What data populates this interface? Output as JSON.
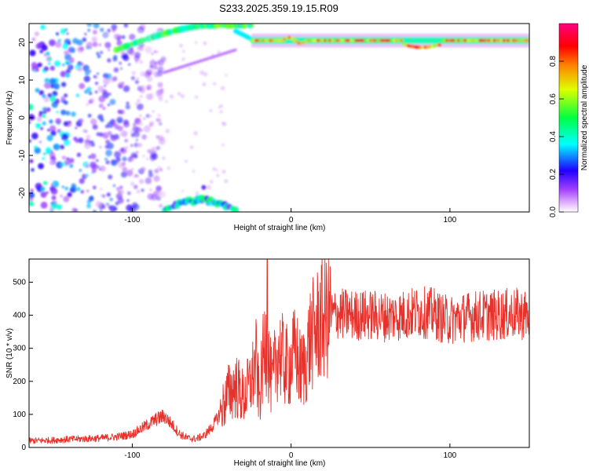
{
  "figure": {
    "title": "S233.2025.359.19.15.R09"
  },
  "chart_data": [
    {
      "type": "heatmap",
      "xlabel": "Height of straight line (km)",
      "ylabel": "Frequency (Hz)",
      "xlim": [
        -165,
        150
      ],
      "ylim": [
        -25,
        25
      ],
      "x_ticks": [
        -100,
        0,
        100
      ],
      "y_ticks": [
        -20,
        -10,
        0,
        10,
        20
      ],
      "colorbar": {
        "label": "Normalized spectral amplitude",
        "range": [
          0,
          1
        ],
        "ticks": [
          0.0,
          0.2,
          0.4,
          0.6,
          0.8
        ],
        "colors": [
          "#ffffff",
          "#e0b0ff",
          "#8000ff",
          "#0000ff",
          "#00ffff",
          "#00ff00",
          "#ffff00",
          "#ff8000",
          "#ff0000",
          "#ff0080"
        ]
      },
      "features": [
        {
          "name": "main-tone",
          "x_start": -25,
          "x_end": 150,
          "frequency": 20.5,
          "amplitude": 0.75
        },
        {
          "name": "scatter-region",
          "x_start": -165,
          "x_end": -100,
          "frequency_range": [
            -25,
            25
          ],
          "amplitude": 0.3
        },
        {
          "name": "upper-arc",
          "x_start": -110,
          "x_end": -25,
          "frequency_range": [
            20,
            25
          ],
          "amplitude": 0.45
        },
        {
          "name": "lower-arc",
          "x_start": -80,
          "x_end": -35,
          "frequency_range": [
            -25,
            -18
          ],
          "amplitude": 0.4
        }
      ]
    },
    {
      "type": "line",
      "xlabel": "Height of straight line (km)",
      "ylabel": "SNR (10 * v/v)",
      "xlim": [
        -165,
        150
      ],
      "ylim": [
        0,
        570
      ],
      "x_ticks": [
        -100,
        0,
        100
      ],
      "y_ticks": [
        0,
        100,
        200,
        300,
        400,
        500
      ],
      "series": [
        {
          "color": "#e8312a",
          "x": [
            -165,
            -150,
            -140,
            -130,
            -120,
            -110,
            -100,
            -95,
            -90,
            -85,
            -80,
            -75,
            -70,
            -65,
            -60,
            -55,
            -50,
            -45,
            -40,
            -35,
            -30,
            -25,
            -22,
            -20,
            -18,
            -16,
            -14,
            -12,
            -10,
            -8,
            -5,
            -2,
            0,
            3,
            6,
            9,
            12,
            15,
            18,
            21,
            25,
            30,
            40,
            50,
            60,
            70,
            80,
            90,
            95,
            100,
            110,
            120,
            130,
            140,
            150
          ],
          "y": [
            20,
            22,
            25,
            26,
            28,
            32,
            40,
            55,
            70,
            85,
            95,
            70,
            40,
            28,
            26,
            35,
            60,
            100,
            160,
            190,
            150,
            200,
            260,
            140,
            250,
            330,
            260,
            180,
            250,
            300,
            260,
            240,
            260,
            290,
            230,
            250,
            330,
            350,
            380,
            395,
            400,
            405,
            400,
            400,
            395,
            400,
            410,
            405,
            390,
            385,
            395,
            400,
            400,
            405,
            400
          ]
        }
      ]
    }
  ]
}
